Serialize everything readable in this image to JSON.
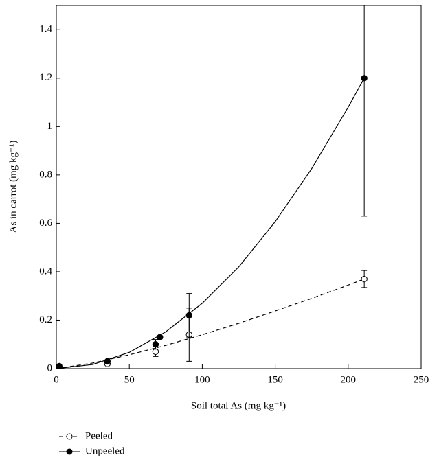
{
  "chart_data": {
    "type": "scatter",
    "xlabel": "Soil total As (mg kg⁻¹)",
    "ylabel": "As in carrot (mg kg⁻¹)",
    "xlim": [
      0,
      250
    ],
    "xticks": [
      0,
      50,
      100,
      150,
      200,
      250
    ],
    "ylim": [
      0,
      1.5
    ],
    "yticks": [
      0,
      0.2,
      0.4,
      0.6,
      0.8,
      1,
      1.2,
      1.4
    ],
    "legend": "bottom-left",
    "series": [
      {
        "name": "Peeled",
        "color": "#000000",
        "marker": "open",
        "dashed": true,
        "x": [
          2,
          35,
          68,
          91,
          211
        ],
        "values": [
          0.005,
          0.02,
          0.07,
          0.14,
          0.37
        ],
        "errors": [
          null,
          null,
          0.02,
          0.11,
          0.035
        ],
        "curve": {
          "x": [
            0,
            25,
            50,
            75,
            100,
            125,
            150,
            175,
            200,
            211
          ],
          "values": [
            0,
            0.023,
            0.057,
            0.096,
            0.14,
            0.187,
            0.238,
            0.29,
            0.345,
            0.37
          ]
        }
      },
      {
        "name": "Unpeeled",
        "color": "#000000",
        "marker": "filled",
        "dashed": false,
        "x": [
          2,
          35,
          68,
          71,
          91,
          211
        ],
        "values": [
          0.01,
          0.03,
          0.1,
          0.13,
          0.22,
          1.2
        ],
        "errors": [
          null,
          null,
          0.02,
          null,
          0.09,
          0.57
        ],
        "curve": {
          "x": [
            0,
            25,
            50,
            75,
            100,
            125,
            150,
            175,
            200,
            211
          ],
          "values": [
            0,
            0.017,
            0.067,
            0.152,
            0.27,
            0.42,
            0.607,
            0.826,
            1.08,
            1.2
          ]
        }
      }
    ]
  }
}
